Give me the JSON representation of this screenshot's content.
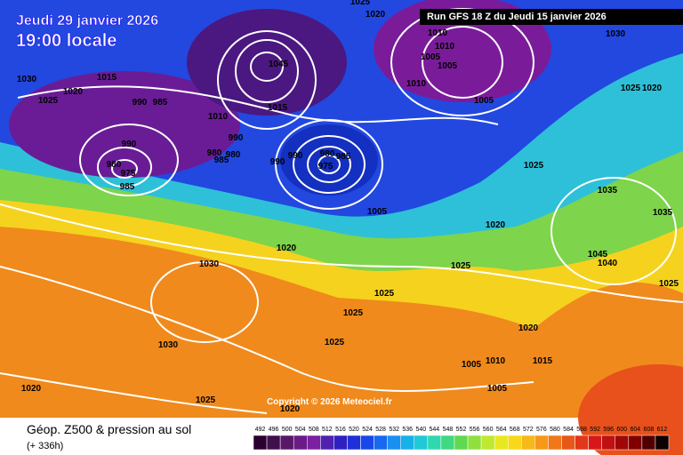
{
  "header": {
    "date": "Jeudi 29 janvier 2026",
    "time": "19:00 locale",
    "run": "Run GFS 18 Z du Jeudi 15 janvier 2026"
  },
  "copyright": "Copyright © 2026 Meteociel.fr",
  "footer": {
    "title": "Géop. Z500 & pression au sol",
    "lead": "(+ 336h)"
  },
  "legend": {
    "ticks": [
      492,
      496,
      500,
      504,
      508,
      512,
      516,
      520,
      524,
      528,
      532,
      536,
      540,
      544,
      548,
      552,
      556,
      560,
      564,
      568,
      572,
      576,
      580,
      584,
      588,
      592,
      596,
      600,
      604,
      608,
      612
    ]
  },
  "isobar_labels": [
    1025,
    1020,
    1030,
    1010,
    1010,
    1005,
    1005,
    1010,
    1005,
    1025,
    1020,
    1030,
    1020,
    1015,
    1025,
    990,
    985,
    1045,
    1015,
    1010,
    990,
    990,
    980,
    975,
    985,
    980,
    985,
    980,
    990,
    990,
    980,
    985,
    975,
    1005,
    1025,
    1035,
    1035,
    1020,
    1020,
    1030,
    1025,
    1045,
    1040,
    1025,
    1025,
    1025,
    1025,
    1030,
    1020,
    1005,
    1010,
    1015,
    1020,
    1025,
    1005,
    1020
  ]
}
